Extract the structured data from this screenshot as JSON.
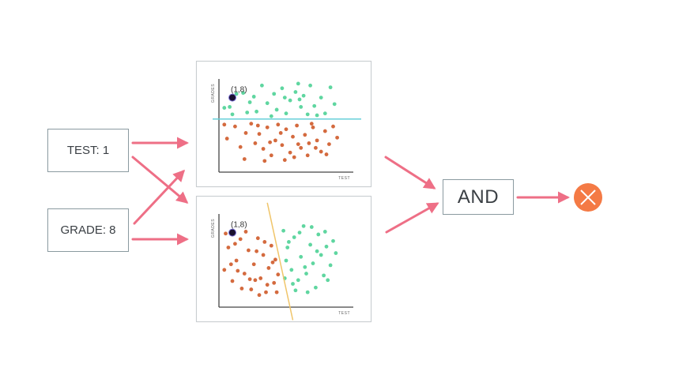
{
  "inputs": {
    "test_label": "TEST: 1",
    "grade_label": "GRADE: 8"
  },
  "gate": {
    "label": "AND"
  },
  "output": {
    "icon": "x-circle-icon",
    "color": "#f47a45"
  },
  "colors": {
    "arrow": "#ee6f86",
    "pass": "#5fd6a0",
    "fail": "#d46a3e",
    "point": "#1a1030",
    "axis": "#444444"
  },
  "chart_data": [
    {
      "type": "scatter",
      "xlabel": "TEST",
      "ylabel": "GRADES",
      "xlim": [
        0,
        10
      ],
      "ylim": [
        0,
        10
      ],
      "annotation": {
        "text": "(1,8)",
        "x": 1,
        "y": 8
      },
      "boundary": {
        "type": "horizontal",
        "y": 5.7,
        "color": "#66cfd9"
      },
      "series": [
        {
          "color": "#5fd6a0",
          "points": [
            [
              0.4,
              6.9
            ],
            [
              0.8,
              7.0
            ],
            [
              1.3,
              8.4
            ],
            [
              1.8,
              8.5
            ],
            [
              2.1,
              6.4
            ],
            [
              2.6,
              8.1
            ],
            [
              3.2,
              9.3
            ],
            [
              3.6,
              7.4
            ],
            [
              4.1,
              8.4
            ],
            [
              4.3,
              6.7
            ],
            [
              4.7,
              9.0
            ],
            [
              5.3,
              7.7
            ],
            [
              5.7,
              8.6
            ],
            [
              6.1,
              7.0
            ],
            [
              6.3,
              8.2
            ],
            [
              6.8,
              9.3
            ],
            [
              7.1,
              7.1
            ],
            [
              7.6,
              8.0
            ],
            [
              7.9,
              6.3
            ],
            [
              8.3,
              9.1
            ],
            [
              8.6,
              7.3
            ],
            [
              2.8,
              6.5
            ],
            [
              3.9,
              6.0
            ],
            [
              5.0,
              6.3
            ],
            [
              6.6,
              6.2
            ],
            [
              7.3,
              6.1
            ],
            [
              1.0,
              6.2
            ],
            [
              4.9,
              8.0
            ],
            [
              5.9,
              9.5
            ],
            [
              2.3,
              7.5
            ],
            [
              6.0,
              7.8
            ]
          ]
        },
        {
          "color": "#d46a3e",
          "points": [
            [
              0.4,
              5.1
            ],
            [
              0.6,
              3.6
            ],
            [
              1.2,
              4.9
            ],
            [
              1.6,
              2.7
            ],
            [
              2.0,
              4.2
            ],
            [
              2.4,
              5.2
            ],
            [
              2.7,
              3.1
            ],
            [
              3.0,
              4.1
            ],
            [
              3.3,
              2.5
            ],
            [
              3.6,
              4.8
            ],
            [
              3.9,
              1.8
            ],
            [
              4.2,
              3.4
            ],
            [
              4.4,
              5.1
            ],
            [
              4.7,
              2.9
            ],
            [
              5.0,
              4.6
            ],
            [
              5.3,
              2.1
            ],
            [
              5.5,
              3.8
            ],
            [
              5.8,
              5.0
            ],
            [
              6.1,
              2.6
            ],
            [
              6.4,
              4.0
            ],
            [
              6.7,
              3.1
            ],
            [
              7.0,
              4.8
            ],
            [
              7.3,
              3.4
            ],
            [
              7.6,
              2.2
            ],
            [
              7.9,
              4.4
            ],
            [
              8.2,
              3.0
            ],
            [
              8.5,
              4.9
            ],
            [
              8.8,
              3.7
            ],
            [
              3.4,
              1.2
            ],
            [
              4.9,
              1.3
            ],
            [
              5.6,
              1.6
            ],
            [
              6.6,
              1.8
            ],
            [
              3.8,
              3.2
            ],
            [
              4.6,
              4.2
            ],
            [
              2.9,
              5.0
            ],
            [
              5.9,
              3.0
            ],
            [
              7.2,
              2.6
            ],
            [
              6.9,
              5.2
            ],
            [
              1.9,
              1.4
            ],
            [
              8.0,
              1.9
            ]
          ]
        }
      ]
    },
    {
      "type": "scatter",
      "xlabel": "TEST",
      "ylabel": "GRADES",
      "xlim": [
        0,
        10
      ],
      "ylim": [
        0,
        10
      ],
      "annotation": {
        "text": "(1,8)",
        "x": 1,
        "y": 8
      },
      "boundary": {
        "type": "line",
        "x1": 3.6,
        "y1": 11.2,
        "x2": 5.5,
        "y2": -1.4,
        "color": "#f0c56a"
      },
      "series": [
        {
          "color": "#d46a3e",
          "points": [
            [
              0.4,
              4.0
            ],
            [
              0.7,
              6.4
            ],
            [
              1.0,
              2.8
            ],
            [
              1.3,
              5.0
            ],
            [
              1.6,
              7.3
            ],
            [
              1.9,
              3.6
            ],
            [
              2.2,
              6.1
            ],
            [
              2.4,
              1.9
            ],
            [
              2.6,
              4.6
            ],
            [
              2.9,
              7.4
            ],
            [
              3.1,
              3.1
            ],
            [
              3.3,
              5.6
            ],
            [
              3.5,
              1.6
            ],
            [
              3.7,
              4.2
            ],
            [
              3.9,
              6.6
            ],
            [
              4.1,
              2.6
            ],
            [
              4.2,
              5.1
            ],
            [
              4.4,
              3.5
            ],
            [
              0.5,
              7.9
            ],
            [
              1.2,
              6.8
            ],
            [
              2.0,
              8.1
            ],
            [
              2.8,
              6.0
            ],
            [
              3.4,
              7.0
            ],
            [
              4.0,
              4.8
            ],
            [
              0.9,
              4.6
            ],
            [
              1.7,
              2.0
            ],
            [
              2.3,
              3.0
            ],
            [
              3.0,
              1.3
            ],
            [
              3.6,
              2.4
            ],
            [
              4.3,
              1.6
            ],
            [
              1.4,
              3.9
            ],
            [
              2.7,
              2.9
            ]
          ]
        },
        {
          "color": "#5fd6a0",
          "points": [
            [
              4.8,
              8.2
            ],
            [
              5.1,
              6.4
            ],
            [
              5.4,
              4.0
            ],
            [
              5.6,
              7.5
            ],
            [
              5.9,
              2.9
            ],
            [
              6.1,
              5.4
            ],
            [
              6.3,
              8.7
            ],
            [
              6.5,
              3.6
            ],
            [
              6.8,
              6.7
            ],
            [
              7.0,
              4.7
            ],
            [
              7.2,
              2.1
            ],
            [
              7.4,
              7.8
            ],
            [
              7.6,
              5.6
            ],
            [
              7.8,
              3.4
            ],
            [
              8.0,
              6.5
            ],
            [
              8.3,
              4.5
            ],
            [
              8.5,
              7.1
            ],
            [
              8.7,
              5.8
            ],
            [
              5.0,
              5.0
            ],
            [
              5.7,
              1.8
            ],
            [
              6.6,
              1.6
            ],
            [
              4.9,
              3.1
            ],
            [
              6.0,
              8.0
            ],
            [
              7.3,
              6.0
            ],
            [
              8.1,
              2.9
            ],
            [
              5.2,
              7.0
            ],
            [
              6.9,
              8.6
            ],
            [
              7.9,
              8.1
            ],
            [
              5.5,
              2.5
            ],
            [
              6.4,
              4.3
            ]
          ]
        }
      ]
    }
  ]
}
